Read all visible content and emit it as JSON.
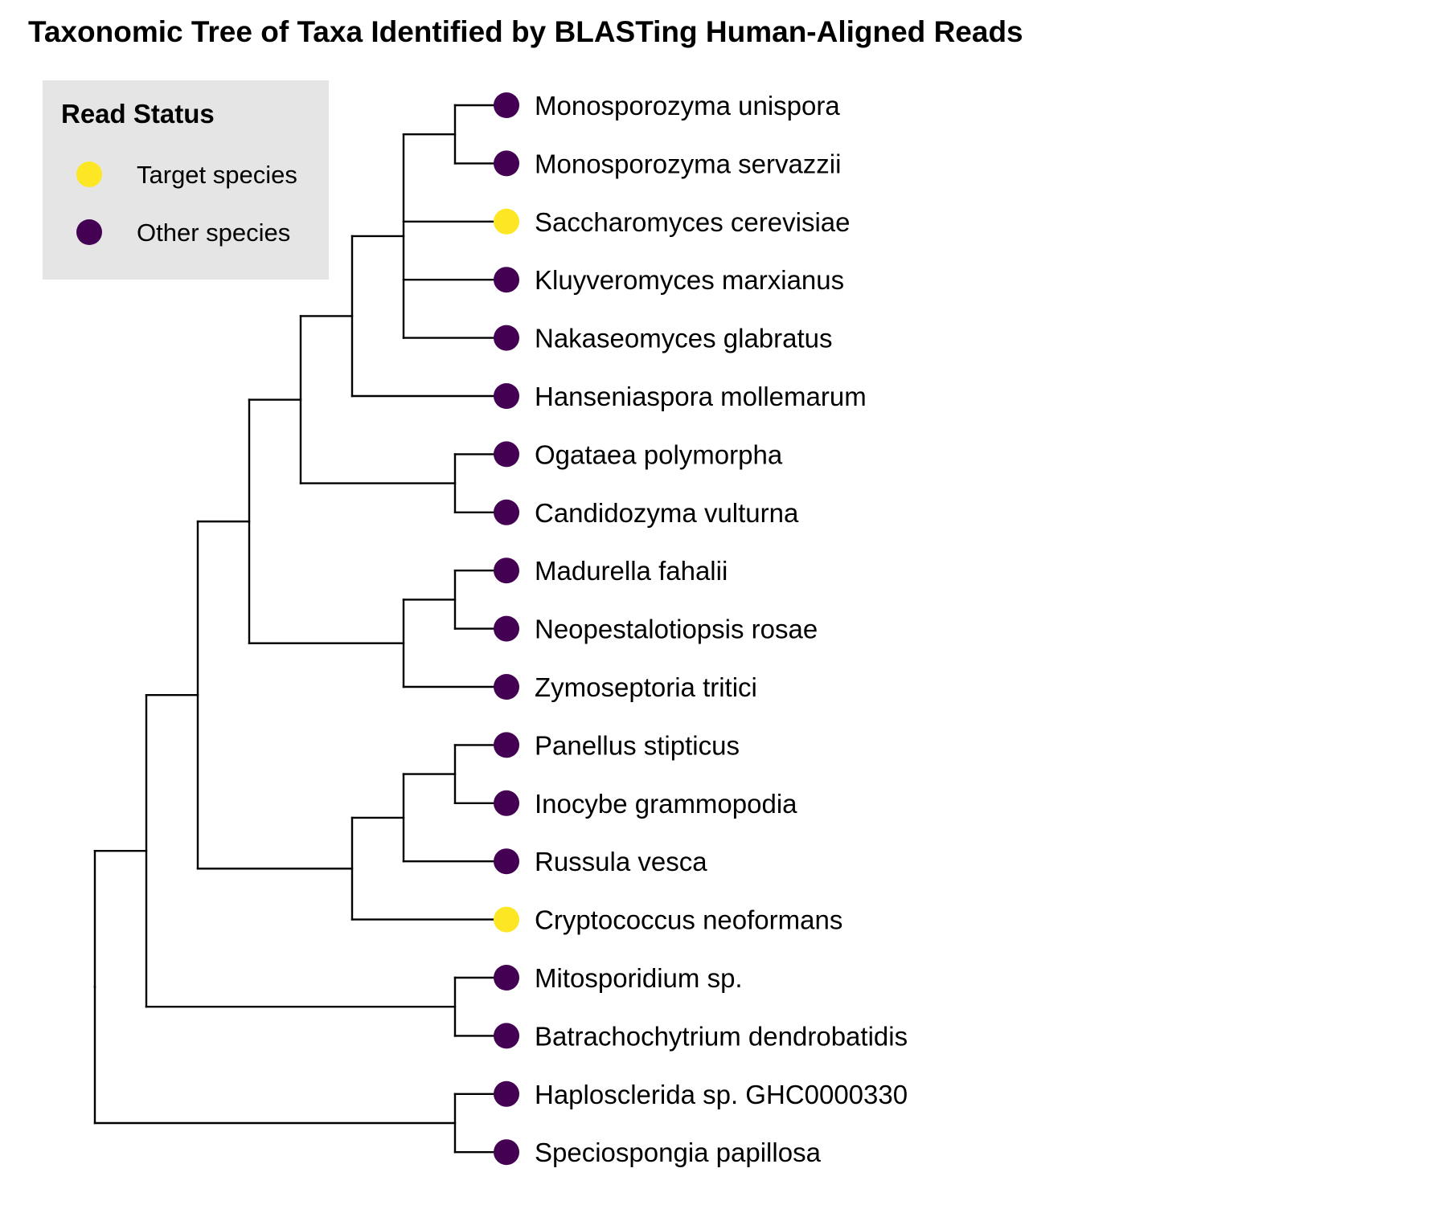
{
  "title": "Taxonomic Tree of Taxa Identified by BLASTing Human-Aligned Reads",
  "colors": {
    "target": "#FDE725",
    "other": "#440154",
    "legend_background": "#E5E5E5",
    "branch": "#000000"
  },
  "legend": {
    "title": "Read Status",
    "items": [
      {
        "label": "Target species",
        "status": "target"
      },
      {
        "label": "Other species",
        "status": "other"
      }
    ]
  },
  "tree": {
    "children": [
      {
        "children": [
          {
            "children": [
              {
                "children": [
                  {
                    "children": [
                      {
                        "children": [
                          {
                            "children": [
                              {
                                "label": "Monosporozyma unispora",
                                "status": "other"
                              },
                              {
                                "label": "Monosporozyma servazzii",
                                "status": "other"
                              }
                            ]
                          },
                          {
                            "label": "Saccharomyces cerevisiae",
                            "status": "target"
                          },
                          {
                            "label": "Kluyveromyces marxianus",
                            "status": "other"
                          },
                          {
                            "label": "Nakaseomyces glabratus",
                            "status": "other"
                          }
                        ]
                      },
                      {
                        "label": "Hanseniaspora mollemarum",
                        "status": "other"
                      }
                    ]
                  },
                  {
                    "children": [
                      {
                        "label": "Ogataea polymorpha",
                        "status": "other"
                      },
                      {
                        "label": "Candidozyma vulturna",
                        "status": "other"
                      }
                    ]
                  }
                ]
              },
              {
                "children": [
                  {
                    "children": [
                      {
                        "label": "Madurella fahalii",
                        "status": "other"
                      },
                      {
                        "label": "Neopestalotiopsis rosae",
                        "status": "other"
                      }
                    ]
                  },
                  {
                    "label": "Zymoseptoria tritici",
                    "status": "other"
                  }
                ]
              }
            ]
          },
          {
            "children": [
              {
                "children": [
                  {
                    "children": [
                      {
                        "label": "Panellus stipticus",
                        "status": "other"
                      },
                      {
                        "label": "Inocybe grammopodia",
                        "status": "other"
                      }
                    ]
                  },
                  {
                    "label": "Russula vesca",
                    "status": "other"
                  }
                ]
              },
              {
                "label": "Cryptococcus neoformans",
                "status": "target"
              }
            ]
          }
        ]
      },
      {
        "children": [
          {
            "label": "Mitosporidium sp.",
            "status": "other"
          },
          {
            "label": "Batrachochytrium dendrobatidis",
            "status": "other"
          }
        ]
      }
    ]
  },
  "outgroup": {
    "children": [
      {
        "label": "Haplosclerida sp. GHC0000330",
        "status": "other"
      },
      {
        "label": "Speciospongia papillosa",
        "status": "other"
      }
    ]
  }
}
